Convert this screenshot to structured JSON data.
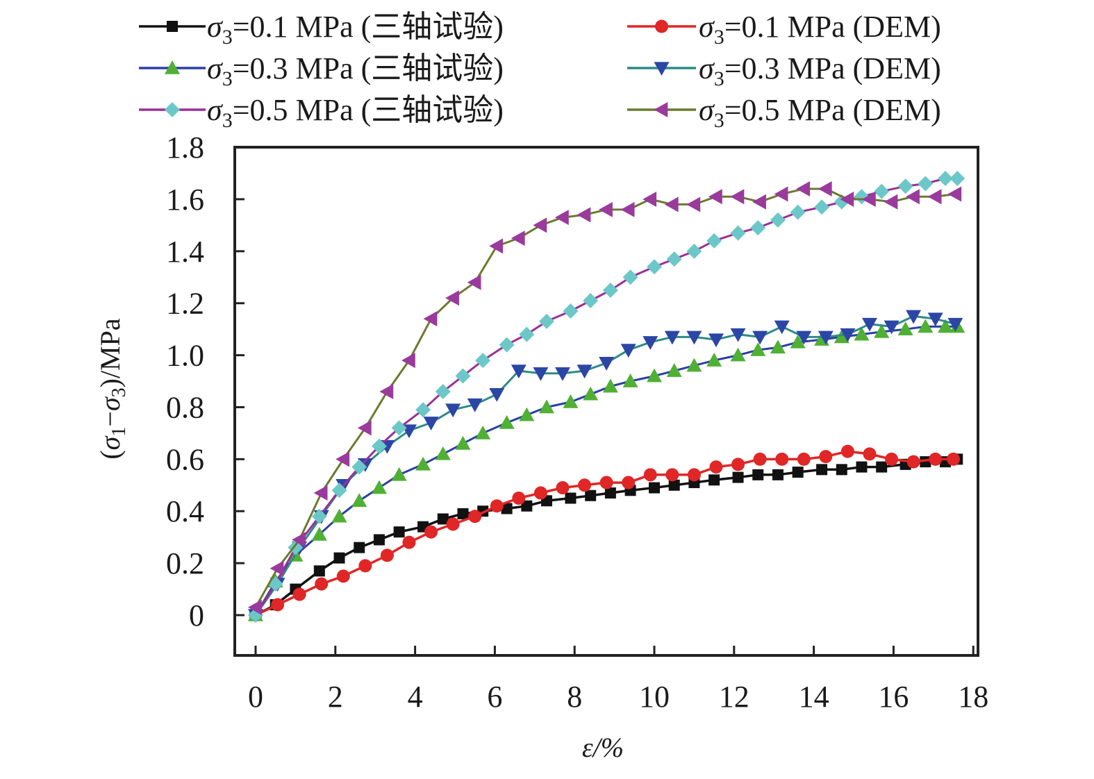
{
  "chart_data": {
    "type": "line",
    "title": "",
    "xlabel": "ε/%",
    "ylabel_parts": {
      "open": "(σ",
      "sub1": "1",
      "minus": "−σ",
      "sub3": "3",
      "close": ")/MPa"
    },
    "ylabel": "(σ1−σ3)/MPa",
    "xlim": [
      -0.5,
      18.2
    ],
    "ylim": [
      -0.15,
      1.8
    ],
    "x_ticks": [
      0,
      2,
      4,
      6,
      8,
      10,
      12,
      14,
      16,
      18
    ],
    "x_tick_labels": [
      "0",
      "2",
      "4",
      "6",
      "8",
      "10",
      "12",
      "14",
      "16",
      "18"
    ],
    "y_ticks": [
      0,
      0.2,
      0.4,
      0.6,
      0.8,
      1.0,
      1.2,
      1.4,
      1.6,
      1.8
    ],
    "y_tick_labels": [
      "0",
      "0.2",
      "0.4",
      "0.6",
      "0.8",
      "1.0",
      "1.2",
      "1.4",
      "1.6",
      "1.8"
    ],
    "grid": false,
    "legend_position": "top",
    "series": [
      {
        "name": "σ3=0.1 MPa (三轴试验)",
        "label_value": "=0.1 MPa (三轴试验)",
        "line_color": "#111111",
        "marker_color": "#111111",
        "marker": "square",
        "x": [
          0,
          0.5,
          1.0,
          1.6,
          2.1,
          2.6,
          3.1,
          3.6,
          4.2,
          4.7,
          5.2,
          5.7,
          6.3,
          6.8,
          7.3,
          7.9,
          8.4,
          8.9,
          9.4,
          10.0,
          10.5,
          11.0,
          11.5,
          12.1,
          12.6,
          13.1,
          13.6,
          14.2,
          14.7,
          15.2,
          15.7,
          16.3,
          16.8,
          17.3,
          17.6
        ],
        "y": [
          0.0,
          0.04,
          0.1,
          0.17,
          0.22,
          0.26,
          0.29,
          0.32,
          0.34,
          0.37,
          0.39,
          0.4,
          0.41,
          0.42,
          0.44,
          0.45,
          0.46,
          0.47,
          0.48,
          0.49,
          0.5,
          0.51,
          0.52,
          0.53,
          0.54,
          0.54,
          0.55,
          0.56,
          0.56,
          0.57,
          0.57,
          0.58,
          0.59,
          0.59,
          0.6
        ]
      },
      {
        "name": "σ3=0.1 MPa (DEM)",
        "label_value": "=0.1 MPa (DEM)",
        "line_color": "#e02626",
        "marker_color": "#e02626",
        "marker": "circle",
        "x": [
          0,
          0.55,
          1.1,
          1.65,
          2.2,
          2.75,
          3.3,
          3.85,
          4.4,
          4.95,
          5.5,
          6.05,
          6.6,
          7.15,
          7.7,
          8.25,
          8.8,
          9.35,
          9.9,
          10.45,
          11.0,
          11.55,
          12.1,
          12.65,
          13.2,
          13.75,
          14.3,
          14.85,
          15.4,
          15.95,
          16.5,
          17.05,
          17.5
        ],
        "y": [
          0.0,
          0.04,
          0.08,
          0.12,
          0.15,
          0.19,
          0.23,
          0.28,
          0.32,
          0.35,
          0.38,
          0.42,
          0.45,
          0.47,
          0.49,
          0.5,
          0.51,
          0.51,
          0.54,
          0.54,
          0.54,
          0.57,
          0.58,
          0.6,
          0.6,
          0.6,
          0.61,
          0.63,
          0.62,
          0.6,
          0.59,
          0.6,
          0.6
        ]
      },
      {
        "name": "σ3=0.3 MPa (三轴试验)",
        "label_value": "=0.3 MPa (三轴试验)",
        "line_color": "#2b3ea8",
        "marker_color": "#4fb034",
        "marker": "triangle-up",
        "x": [
          0,
          0.5,
          1.0,
          1.6,
          2.1,
          2.6,
          3.1,
          3.6,
          4.2,
          4.7,
          5.2,
          5.7,
          6.3,
          6.8,
          7.3,
          7.9,
          8.4,
          8.9,
          9.4,
          10.0,
          10.5,
          11.0,
          11.5,
          12.1,
          12.6,
          13.1,
          13.6,
          14.2,
          14.7,
          15.2,
          15.7,
          16.3,
          16.8,
          17.3,
          17.6
        ],
        "y": [
          0.0,
          0.13,
          0.23,
          0.31,
          0.38,
          0.44,
          0.49,
          0.54,
          0.58,
          0.62,
          0.66,
          0.7,
          0.74,
          0.77,
          0.8,
          0.82,
          0.85,
          0.88,
          0.9,
          0.92,
          0.94,
          0.96,
          0.98,
          1.0,
          1.02,
          1.03,
          1.05,
          1.06,
          1.07,
          1.08,
          1.09,
          1.1,
          1.11,
          1.11,
          1.11
        ]
      },
      {
        "name": "σ3=0.3 MPa (DEM)",
        "label_value": "=0.3 MPa (DEM)",
        "line_color": "#2e8a86",
        "marker_color": "#2c46a6",
        "marker": "triangle-down",
        "x": [
          0,
          0.55,
          1.1,
          1.65,
          2.2,
          2.75,
          3.3,
          3.85,
          4.4,
          4.95,
          5.5,
          6.05,
          6.6,
          7.15,
          7.7,
          8.25,
          8.8,
          9.35,
          9.9,
          10.45,
          11.0,
          11.55,
          12.1,
          12.65,
          13.2,
          13.75,
          14.3,
          14.85,
          15.4,
          15.95,
          16.5,
          17.05,
          17.55
        ],
        "y": [
          0.0,
          0.12,
          0.26,
          0.38,
          0.5,
          0.58,
          0.65,
          0.71,
          0.74,
          0.79,
          0.81,
          0.85,
          0.94,
          0.93,
          0.93,
          0.94,
          0.97,
          1.02,
          1.05,
          1.07,
          1.07,
          1.06,
          1.08,
          1.07,
          1.11,
          1.07,
          1.07,
          1.08,
          1.12,
          1.11,
          1.15,
          1.14,
          1.12
        ]
      },
      {
        "name": "σ3=0.5 MPa (三轴试验)",
        "label_value": "=0.5 MPa (三轴试验)",
        "line_color": "#9a2f9a",
        "marker_color": "#6cc8c8",
        "marker": "diamond",
        "x": [
          0,
          0.5,
          1.0,
          1.6,
          2.1,
          2.6,
          3.1,
          3.6,
          4.2,
          4.7,
          5.2,
          5.7,
          6.3,
          6.8,
          7.3,
          7.9,
          8.4,
          8.9,
          9.4,
          10.0,
          10.5,
          11.0,
          11.5,
          12.1,
          12.6,
          13.1,
          13.6,
          14.2,
          14.7,
          15.2,
          15.7,
          16.3,
          16.8,
          17.3,
          17.6
        ],
        "y": [
          0.0,
          0.12,
          0.26,
          0.38,
          0.48,
          0.57,
          0.65,
          0.72,
          0.79,
          0.86,
          0.92,
          0.98,
          1.04,
          1.08,
          1.13,
          1.17,
          1.21,
          1.25,
          1.3,
          1.34,
          1.37,
          1.4,
          1.44,
          1.47,
          1.49,
          1.52,
          1.55,
          1.57,
          1.59,
          1.61,
          1.63,
          1.65,
          1.66,
          1.68,
          1.68
        ]
      },
      {
        "name": "σ3=0.5 MPa (DEM)",
        "label_value": "=0.5 MPa (DEM)",
        "line_color": "#6b7a2e",
        "marker_color": "#9a3a9c",
        "marker": "triangle-left",
        "x": [
          0,
          0.55,
          1.1,
          1.65,
          2.2,
          2.75,
          3.3,
          3.85,
          4.4,
          4.95,
          5.5,
          6.05,
          6.6,
          7.15,
          7.7,
          8.25,
          8.8,
          9.35,
          9.9,
          10.45,
          11.0,
          11.55,
          12.1,
          12.65,
          13.2,
          13.75,
          14.3,
          14.85,
          15.4,
          15.95,
          16.5,
          17.05,
          17.55
        ],
        "y": [
          0.03,
          0.18,
          0.29,
          0.47,
          0.6,
          0.72,
          0.86,
          0.98,
          1.14,
          1.22,
          1.28,
          1.42,
          1.45,
          1.5,
          1.53,
          1.54,
          1.56,
          1.56,
          1.6,
          1.58,
          1.58,
          1.61,
          1.61,
          1.59,
          1.62,
          1.64,
          1.64,
          1.6,
          1.6,
          1.59,
          1.61,
          1.61,
          1.62
        ]
      }
    ]
  }
}
